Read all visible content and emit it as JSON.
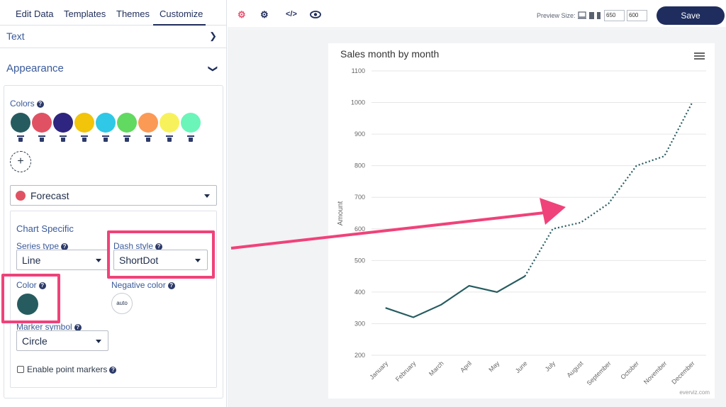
{
  "tabs": [
    "Edit Data",
    "Templates",
    "Themes",
    "Customize"
  ],
  "sections": {
    "text": {
      "title": "Text"
    },
    "appearance": {
      "title": "Appearance"
    }
  },
  "colors": {
    "label": "Colors",
    "swatches": [
      "#265c60",
      "#e05263",
      "#2d2580",
      "#f2c40a",
      "#2fc8e6",
      "#62d960",
      "#fb9a55",
      "#f7f25c",
      "#6bf5b9"
    ]
  },
  "series_select": {
    "value": "Forecast",
    "color": "#e05263"
  },
  "chart_specific": {
    "title": "Chart Specific",
    "series_type_label": "Series type",
    "series_type_value": "Line",
    "dash_style_label": "Dash style",
    "dash_style_value": "ShortDot",
    "color_label": "Color",
    "color_value": "#265c60",
    "negative_color_label": "Negative color",
    "negative_color_value": "auto",
    "marker_symbol_label": "Marker symbol",
    "marker_symbol_value": "Circle",
    "point_markers_label": "Enable point markers",
    "point_markers_checked": false
  },
  "toolbar": {
    "icons": [
      "gear-icon",
      "gears-icon",
      "code-icon",
      "eye-icon"
    ],
    "preview_label": "Preview Size:",
    "width": "650",
    "height": "600",
    "save_label": "Save"
  },
  "highlight_color": "#f0427a",
  "chart_data": {
    "type": "line",
    "title": "Sales month by month",
    "ylabel": "Amount",
    "categories": [
      "January",
      "February",
      "March",
      "April",
      "May",
      "June",
      "July",
      "August",
      "September",
      "October",
      "November",
      "December"
    ],
    "series": [
      {
        "values": [
          350,
          320,
          360,
          420,
          400,
          450,
          null,
          null,
          null,
          null,
          null,
          null
        ],
        "color": "#265c60",
        "dash": "solid"
      },
      {
        "values": [
          null,
          null,
          null,
          null,
          null,
          450,
          600,
          620,
          680,
          800,
          830,
          1000
        ],
        "color": "#265c60",
        "dash": "ShortDot"
      }
    ],
    "ylim": [
      200,
      1100
    ],
    "yticks": [
      200,
      300,
      400,
      500,
      600,
      700,
      800,
      900,
      1000,
      1100
    ],
    "grid": true,
    "legend": "none",
    "credits": "everviz.com"
  }
}
